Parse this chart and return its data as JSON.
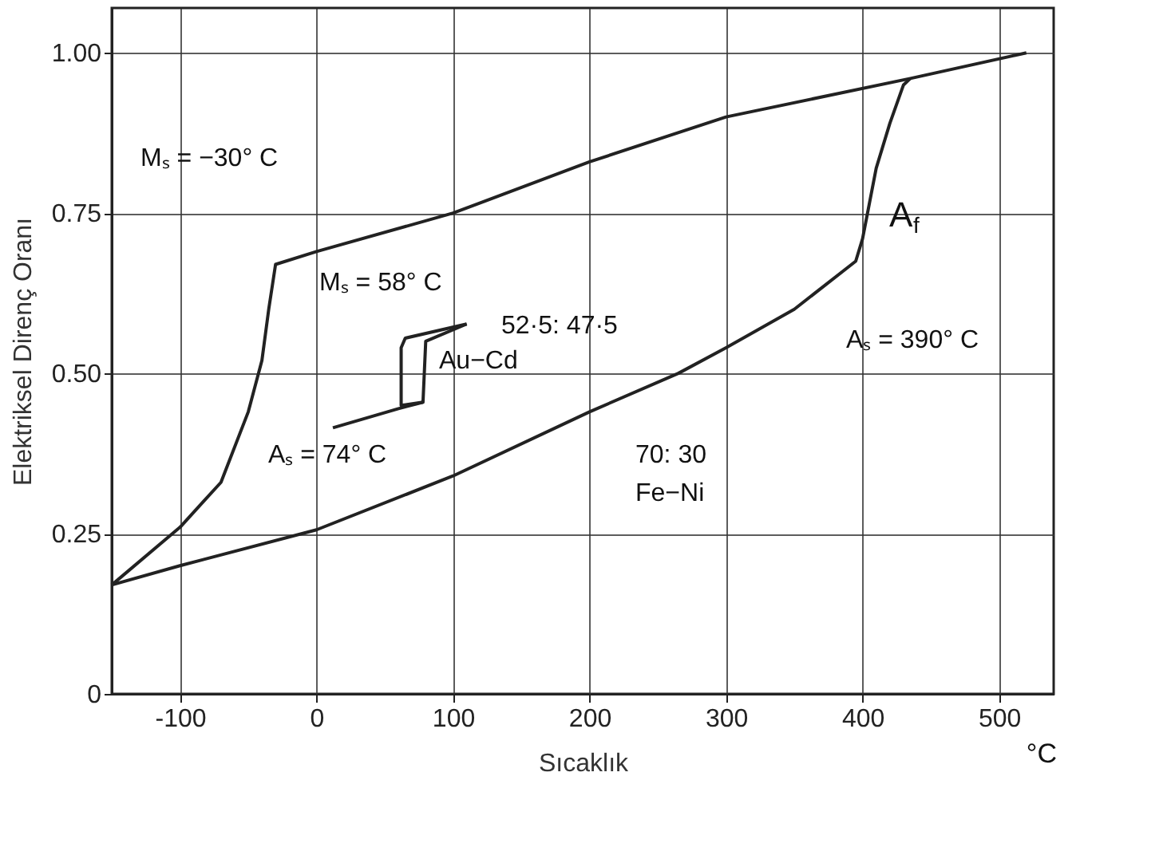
{
  "chart_data": {
    "type": "line",
    "xlabel": "Sıcaklık",
    "ylabel": "Elektriksel Direnç Oranı",
    "xlim": [
      -150,
      540
    ],
    "ylim": [
      0,
      1.07
    ],
    "xticks": [
      -100,
      0,
      100,
      200,
      300,
      400,
      500
    ],
    "yticks": [
      0,
      0.25,
      {
        "value": 0.5,
        "label": "0.50"
      },
      0.75,
      {
        "value": 1,
        "label": "1.00"
      }
    ],
    "grid": true,
    "series": [
      {
        "color": "#222222",
        "x": [
          -150,
          -100,
          0,
          100,
          200,
          265,
          300,
          350,
          395,
          400,
          410,
          420,
          430,
          435
        ],
        "values": [
          0.17,
          0.2,
          0.256,
          0.34,
          0.44,
          0.5,
          0.54,
          0.6,
          0.675,
          0.71,
          0.82,
          0.89,
          0.95,
          0.96
        ]
      },
      {
        "color": "#222222",
        "x": [
          520,
          435,
          300,
          200,
          100,
          0,
          -30,
          -35,
          -40,
          -50,
          -70,
          -100,
          -150
        ],
        "values": [
          1.0,
          0.96,
          0.9,
          0.83,
          0.75,
          0.69,
          0.67,
          0.6,
          0.52,
          0.44,
          0.33,
          0.26,
          0.17
        ]
      },
      {
        "color": "#222222",
        "x": [
          12,
          60,
          78,
          80,
          110
        ],
        "values": [
          0.415,
          0.445,
          0.455,
          0.55,
          0.577
        ]
      },
      {
        "color": "#222222",
        "x": [
          110,
          65,
          62,
          62,
          78
        ],
        "values": [
          0.577,
          0.555,
          0.54,
          0.45,
          0.455
        ]
      }
    ],
    "annotations": [
      "Mₛ = −30° C",
      "Mₛ = 58° C",
      "52·5: 47·5",
      "Au−Cd",
      "Aₛ = 74° C",
      "70: 30",
      "Fe−Ni",
      "Aₛ = 390° C",
      "A$_{f}$",
      "°C"
    ]
  }
}
